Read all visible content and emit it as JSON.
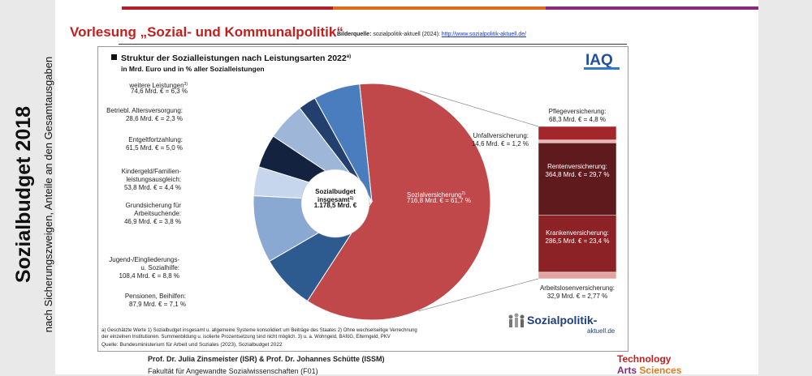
{
  "header": {
    "title": "Vorlesung „Sozial- und Kommunalpolitik“",
    "source_label": "Bilderquelle:",
    "source_text": "sozialpolitik-aktuell (2024):",
    "source_url": "http://www.sozialpolitik-aktuell.de/",
    "bar_colors": [
      "#b3202a",
      "#e06a1c",
      "#8a2a7a"
    ]
  },
  "side": {
    "title": "Sozialbudget 2018",
    "subtitle": "nach Sicherungszweigen, Anteile an den Gesamtausgaben"
  },
  "chart_data": {
    "type": "pie",
    "title": "Struktur der Sozialleistungen nach Leistungsarten 2022",
    "title_superscript": "a)",
    "subtitle": "in Mrd. Euro und in % aller Sozialleistungen",
    "brand": "IAQ",
    "center_label": [
      "Sozialbudget",
      "insgesamt",
      "1.178,5 Mrd. €"
    ],
    "center_superscript": "1)",
    "slices": [
      {
        "name": "Sozialversicherung",
        "sup": "2)",
        "value_text": "716,8 Mrd. € = 61,7 %",
        "value": 716.8,
        "percent": 61.7,
        "color": "#c0474a"
      },
      {
        "name": "Pensionen, Beihilfen:",
        "sup": "",
        "value_text": "87,9 Mrd. € = 7,1 %",
        "value": 87.9,
        "percent": 7.1,
        "color": "#2e5b8f"
      },
      {
        "name": "Jugend-/Eingliederungs- u. Sozialhilfe:",
        "sup": "",
        "value_text": "108,4 Mrd. € = 8,8 %",
        "value": 108.4,
        "percent": 8.8,
        "color": "#8aa9d2"
      },
      {
        "name": "Grundsicherung für Arbeitsuchende:",
        "sup": "",
        "value_text": "46,9 Mrd. € = 3,8 %",
        "value": 46.9,
        "percent": 3.8,
        "color": "#c6d6ec"
      },
      {
        "name": "Kindergeld/Familien- leistungsausgleich:",
        "sup": "",
        "value_text": "53,8 Mrd. € = 4,4 %",
        "value": 53.8,
        "percent": 4.4,
        "color": "#13233f"
      },
      {
        "name": "Entgeltfortzahlung:",
        "sup": "",
        "value_text": "61,5 Mrd. € = 5,0 %",
        "value": 61.5,
        "percent": 5.0,
        "color": "#9eb6d8"
      },
      {
        "name": "Betriebl. Altersversorgung:",
        "sup": "",
        "value_text": "28,6 Mrd. € = 2,3 %",
        "value": 28.6,
        "percent": 2.3,
        "color": "#223f6e"
      },
      {
        "name": "weitere Leistungen",
        "sup": "3)",
        "value_text": "74,6 Mrd. € = 6,3 %",
        "value": 74.6,
        "percent": 6.3,
        "color": "#4a7dbe"
      }
    ],
    "breakdown": [
      {
        "name": "Pflegeversicherung:",
        "value_text": "68,3 Mrd. € = 4,8 %",
        "value": 68.3,
        "percent": 4.8,
        "color": "#a3262b"
      },
      {
        "name": "Unfallversicherung:",
        "value_text": "14,6 Mrd. € = 1,2 %",
        "value": 14.6,
        "percent": 1.2,
        "color": "#e7b7b6"
      },
      {
        "name": "Rentenversicherung:",
        "value_text": "364,8 Mrd. € = 29,7 %",
        "value": 364.8,
        "percent": 29.7,
        "color": "#5e1a1d"
      },
      {
        "name": "Krankenversicherung:",
        "value_text": "286,5 Mrd. € = 23,4 %",
        "value": 286.5,
        "percent": 23.4,
        "color": "#8c2226"
      },
      {
        "name": "Arbeitslosenversicherung:",
        "value_text": "32,9 Mrd. € = 2,77 %",
        "value": 32.9,
        "percent": 2.77,
        "color": "#e1a4a3"
      }
    ],
    "footnotes": [
      "a) Geschätzte Werte 1) Sozialbudget insgesamt u. allgemeine Systeme konsolidiert um Beiträge des Staates 2) Ohne wechselseitige Verrechnung",
      "der einzelnen Institutionen. Summenbildung u. isolierte Prozentsetzung sind nicht möglich. 3) u. a. Wohngeld, BAföG, Elterngeld, PKV"
    ],
    "source": "Quelle: Bundesministerium für Arbeit und Soziales (2023), Sozialbudget 2022",
    "watermark": [
      "Sozialpolitik-",
      "aktuell.de"
    ]
  },
  "footer": {
    "authors": "Prof. Dr. Julia Zinsmeister (ISR) & Prof. Dr. Johannes Schütte (ISSM)",
    "faculty": "Fakultät für Angewandte Sozialwissenschaften (F01)",
    "logo_line1": "Technology",
    "logo_line2a": "Arts",
    "logo_line2b": "Sciences"
  }
}
